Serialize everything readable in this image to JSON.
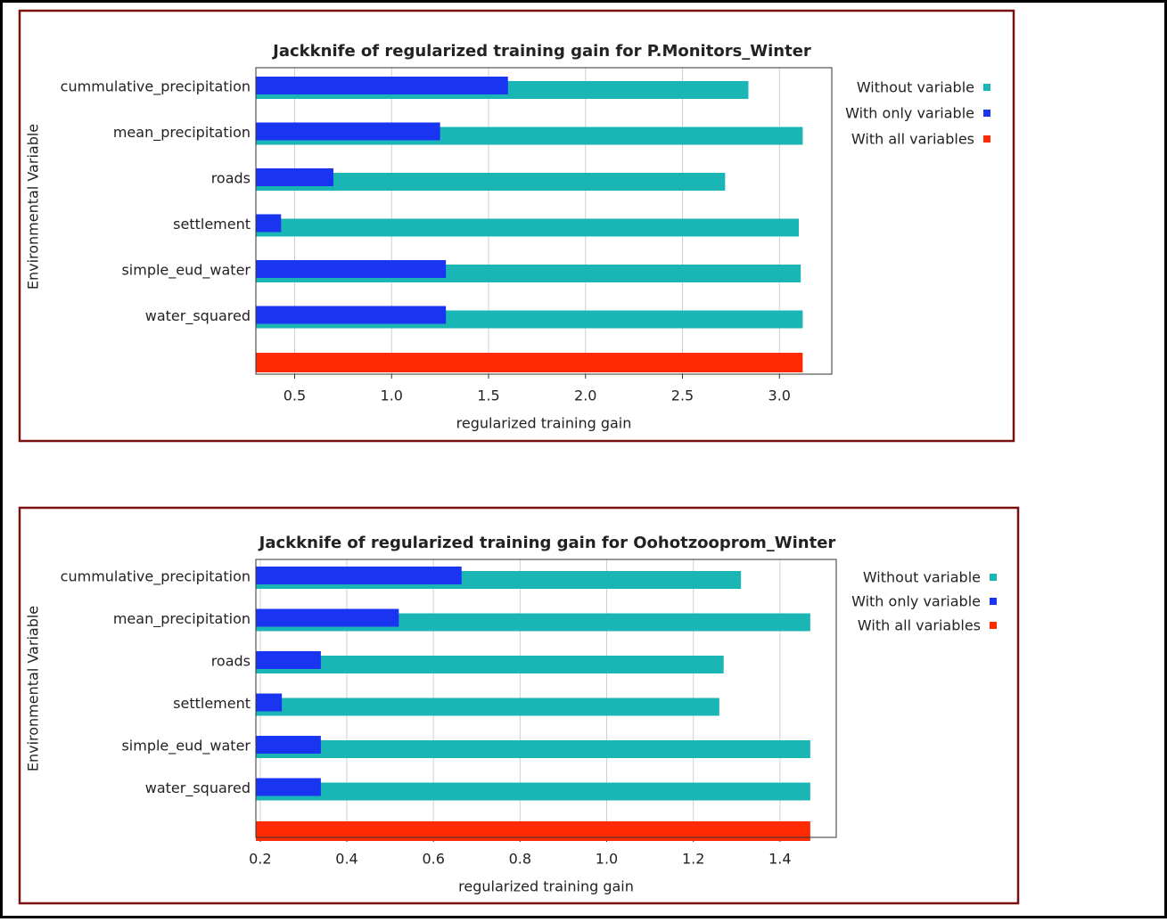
{
  "chart_data": [
    {
      "type": "bar",
      "orientation": "horizontal",
      "title": "Jackknife of regularized training gain for P.Monitors_Winter",
      "x_label": "regularized training gain",
      "y_label": "Environmental Variable",
      "categories": [
        "cummulative_precipitation",
        "mean_precipitation",
        "roads",
        "settlement",
        "simple_eud_water",
        "water_squared",
        null
      ],
      "series": [
        {
          "name": "Without variable",
          "color": "#1ab5b5",
          "values": [
            2.84,
            3.12,
            2.72,
            3.1,
            3.11,
            3.12,
            null
          ]
        },
        {
          "name": "With only variable",
          "color": "#1a35f2",
          "values": [
            1.6,
            1.25,
            0.7,
            0.43,
            1.28,
            1.28,
            null
          ]
        },
        {
          "name": "With all variables",
          "color": "#ff2a00",
          "values": [
            null,
            null,
            null,
            null,
            null,
            null,
            3.12
          ]
        }
      ],
      "xlim": [
        0.3,
        3.27
      ],
      "xticks": [
        0.5,
        {
          "value": 1.0,
          "label": "1.0"
        },
        1.5,
        {
          "value": 2.0,
          "label": "2.0"
        },
        2.5,
        {
          "value": 3.0,
          "label": "3.0"
        }
      ],
      "grid": true,
      "legend": "right"
    },
    {
      "type": "bar",
      "orientation": "horizontal",
      "title": "Jackknife of regularized training gain for Oohotzooprom_Winter",
      "x_label": "regularized training gain",
      "y_label": "Environmental Variable",
      "categories": [
        "cummulative_precipitation",
        "mean_precipitation",
        "roads",
        "settlement",
        "simple_eud_water",
        "water_squared",
        null
      ],
      "series": [
        {
          "name": "Without variable",
          "color": "#1ab5b5",
          "values": [
            1.31,
            1.47,
            1.27,
            1.26,
            1.47,
            1.47,
            null
          ]
        },
        {
          "name": "With only variable",
          "color": "#1a35f2",
          "values": [
            0.665,
            0.52,
            0.34,
            0.25,
            0.34,
            0.34,
            null
          ]
        },
        {
          "name": "With all variables",
          "color": "#ff2a00",
          "values": [
            null,
            null,
            null,
            null,
            null,
            null,
            1.47
          ]
        }
      ],
      "xlim": [
        0.19,
        1.53
      ],
      "xticks": [
        0.2,
        0.4,
        0.6,
        0.8,
        {
          "value": 1.0,
          "label": "1.0"
        },
        1.2,
        1.4
      ],
      "grid": true,
      "legend": "right"
    }
  ]
}
